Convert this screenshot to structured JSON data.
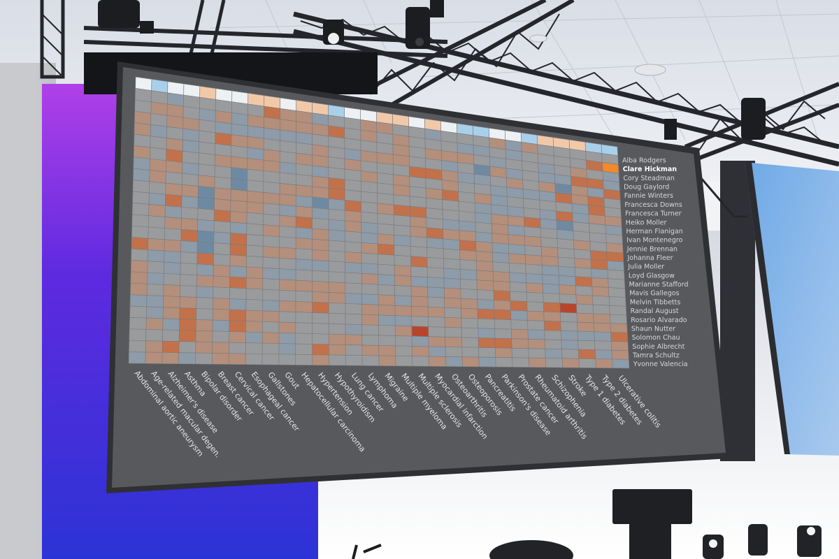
{
  "photo": {
    "colors": {
      "ceiling": "#cfd3dc",
      "truss": "#2a2b30",
      "stage_purple": "#5b1fd6",
      "stage_blue": "#2f35d8",
      "screen_bg": "#555659",
      "screen_frame": "#2e2f32",
      "side_screen_sky": "#7fb4ea"
    }
  },
  "heatmap": {
    "highlighted_person": "Clare Hickman",
    "people": [
      "Alba Rodgers",
      "Clare Hickman",
      "Cory Steadman",
      "Doug Gaylord",
      "Fannie Winters",
      "Francesca Downs",
      "Francesca Turner",
      "Heiko Moller",
      "Herman Flanigan",
      "Ivan Montenegro",
      "Jennie Brennan",
      "Johanna Fleer",
      "Julia Moller",
      "Loyd Glasgow",
      "Marianne Stafford",
      "Mavis Gallegos",
      "Melvin Tibbetts",
      "Randal August",
      "Rosario Alvarado",
      "Shaun Nutter",
      "Solomon Chau",
      "Sophie Albrecht",
      "Tamra Schultz",
      "Yvonne Valencia"
    ],
    "diseases": [
      "Abdominal aortic aneurysm",
      "Age-related macular degen.",
      "Alzheimer's disease",
      "Asthma",
      "Bipolar disorder",
      "Breast cancer",
      "Cervical cancer",
      "Esophageal cancer",
      "Gallstones",
      "Gout",
      "Hepatocellular carcinoma",
      "Hypertension",
      "Hypothyroidism",
      "Lung cancer",
      "Lymphoma",
      "Migraine",
      "Multiple myeloma",
      "Multiple sclerosis",
      "Myocardial infarction",
      "Osteoarthritis",
      "Osteoporosis",
      "Pancreatitis",
      "Parkinson's disease",
      "Prostate cancer",
      "Rheumatoid arthritis",
      "Schizophenia",
      "Stroke",
      "Type 1 diabetes",
      "Type 2 diabetes",
      "Ulcerative colitis"
    ],
    "palette": {
      "neutral": "#9a9b9d",
      "warm_light": "#b48f7b",
      "warm_mid": "#c2714a",
      "warm_strong": "#b8442c",
      "cool_light": "#8e9ba8",
      "cool_mid": "#6e8aa3",
      "top_white": "#eef1f4",
      "top_peach": "#f1c9a9",
      "top_blue": "#a9d0ea",
      "accent_orange": "#f08a2a"
    }
  }
}
